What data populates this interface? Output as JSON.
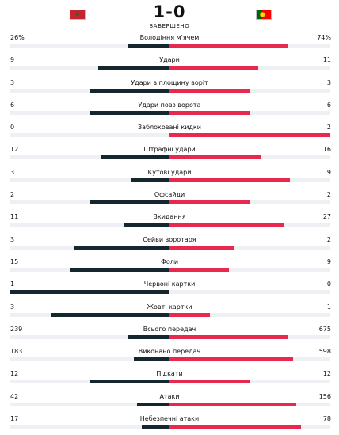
{
  "match": {
    "score": "1-0",
    "status": "ЗАВЕРШЕНО",
    "home_flag": "morocco-flag",
    "away_flag": "portugal-flag"
  },
  "colors": {
    "home_bar": "#16262f",
    "away_bar": "#e8284f",
    "track": "#eef0f3"
  },
  "stats": [
    {
      "label": "Володіння м'ячем",
      "home": "26%",
      "away": "74%",
      "home_share": 0.26,
      "away_share": 0.74
    },
    {
      "label": "Удари",
      "home": "9",
      "away": "11",
      "home_share": 0.45,
      "away_share": 0.55
    },
    {
      "label": "Удари в площину воріт",
      "home": "3",
      "away": "3",
      "home_share": 0.5,
      "away_share": 0.5
    },
    {
      "label": "Удари повз ворота",
      "home": "6",
      "away": "6",
      "home_share": 0.5,
      "away_share": 0.5
    },
    {
      "label": "Заблоковані кидки",
      "home": "0",
      "away": "2",
      "home_share": 0.0,
      "away_share": 1.0
    },
    {
      "label": "Штрафні удари",
      "home": "12",
      "away": "16",
      "home_share": 0.43,
      "away_share": 0.57
    },
    {
      "label": "Кутові удари",
      "home": "3",
      "away": "9",
      "home_share": 0.25,
      "away_share": 0.75
    },
    {
      "label": "Офсайди",
      "home": "2",
      "away": "2",
      "home_share": 0.5,
      "away_share": 0.5
    },
    {
      "label": "Вкидання",
      "home": "11",
      "away": "27",
      "home_share": 0.29,
      "away_share": 0.71
    },
    {
      "label": "Сейви воротаря",
      "home": "3",
      "away": "2",
      "home_share": 0.6,
      "away_share": 0.4
    },
    {
      "label": "Фоли",
      "home": "15",
      "away": "9",
      "home_share": 0.63,
      "away_share": 0.37
    },
    {
      "label": "Червоні картки",
      "home": "1",
      "away": "0",
      "home_share": 1.0,
      "away_share": 0.0
    },
    {
      "label": "Жовті картки",
      "home": "3",
      "away": "1",
      "home_share": 0.75,
      "away_share": 0.25
    },
    {
      "label": "Всього передач",
      "home": "239",
      "away": "675",
      "home_share": 0.26,
      "away_share": 0.74
    },
    {
      "label": "Виконано передач",
      "home": "183",
      "away": "598",
      "home_share": 0.23,
      "away_share": 0.77
    },
    {
      "label": "Підкати",
      "home": "12",
      "away": "12",
      "home_share": 0.5,
      "away_share": 0.5
    },
    {
      "label": "Атаки",
      "home": "42",
      "away": "156",
      "home_share": 0.21,
      "away_share": 0.79
    },
    {
      "label": "Небезпечні атаки",
      "home": "17",
      "away": "78",
      "home_share": 0.18,
      "away_share": 0.82
    }
  ]
}
